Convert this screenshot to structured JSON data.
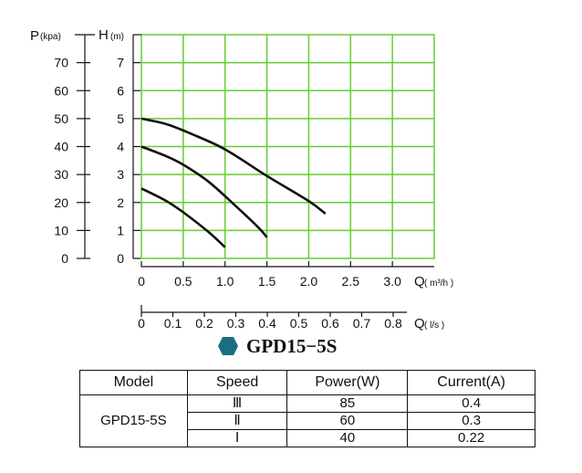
{
  "chart_data": {
    "type": "line",
    "title": "GPD15−5S",
    "x_primary": {
      "label": "Q",
      "unit": "( m³/h )",
      "min": 0,
      "max": 3.5,
      "ticks": [
        "0",
        "0.5",
        "1.0",
        "1.5",
        "2.0",
        "2.5",
        "3.0"
      ]
    },
    "x_secondary": {
      "label": "Q",
      "unit": "( l/s )",
      "min": 0,
      "max": 0.9,
      "ticks": [
        "0",
        "0.1",
        "0.2",
        "0.3",
        "0.4",
        "0.5",
        "0.6",
        "0.7",
        "0.8"
      ]
    },
    "y_primary": {
      "label": "H",
      "unit": "(m)",
      "min": 0,
      "max": 8,
      "ticks": [
        "0",
        "1",
        "2",
        "3",
        "4",
        "5",
        "6",
        "7"
      ]
    },
    "y_secondary": {
      "label": "P",
      "unit": "(kpa)",
      "min": 0,
      "max": 80,
      "ticks": [
        "0",
        "10",
        "20",
        "30",
        "40",
        "50",
        "60",
        "70"
      ]
    },
    "grid": true,
    "grid_color": "#66cc33",
    "line_color": "#111111",
    "series": [
      {
        "name": "III",
        "x": [
          0,
          0.3,
          0.6,
          1.0,
          1.5,
          2.0,
          2.2
        ],
        "y": [
          5.0,
          4.8,
          4.45,
          3.9,
          2.95,
          2.05,
          1.6
        ]
      },
      {
        "name": "II",
        "x": [
          0,
          0.3,
          0.5,
          0.8,
          1.1,
          1.4,
          1.5
        ],
        "y": [
          4.0,
          3.65,
          3.35,
          2.75,
          1.95,
          1.1,
          0.75
        ]
      },
      {
        "name": "I",
        "x": [
          0,
          0.3,
          0.5,
          0.8,
          1.0
        ],
        "y": [
          2.5,
          2.05,
          1.65,
          0.95,
          0.4
        ]
      }
    ]
  },
  "title_icon": "hexagon-icon",
  "title_icon_color": "#1a6e80",
  "table": {
    "headers": {
      "model": "Model",
      "speed": "Speed",
      "power": "Power(W)",
      "current": "Current(A)"
    },
    "model": "GPD15-5S",
    "rows": [
      {
        "speed": "Ⅲ",
        "power": "85",
        "current": "0.4"
      },
      {
        "speed": "Ⅱ",
        "power": "60",
        "current": "0.3"
      },
      {
        "speed": "Ⅰ",
        "power": "40",
        "current": "0.22"
      }
    ]
  }
}
